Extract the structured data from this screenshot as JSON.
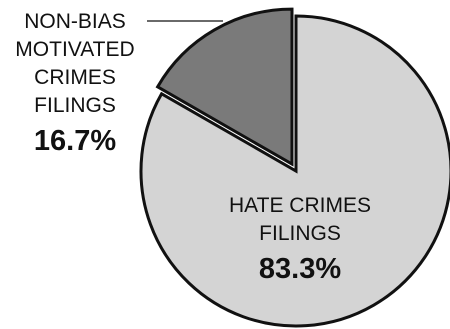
{
  "chart_data": {
    "type": "pie",
    "slices": [
      {
        "label_lines": [
          "HATE CRIMES",
          "FILINGS"
        ],
        "value_label": "83.3%",
        "value": 83.3,
        "color": "#d4d4d4"
      },
      {
        "label_lines": [
          "NON-BIAS",
          "MOTIVATED",
          "CRIMES",
          "FILINGS"
        ],
        "value_label": "16.7%",
        "value": 16.7,
        "color": "#7a7a7a"
      }
    ],
    "slice_order": "clockwise from top",
    "exploded_slice": 1,
    "stroke_color": "#111111",
    "legend": "none"
  }
}
